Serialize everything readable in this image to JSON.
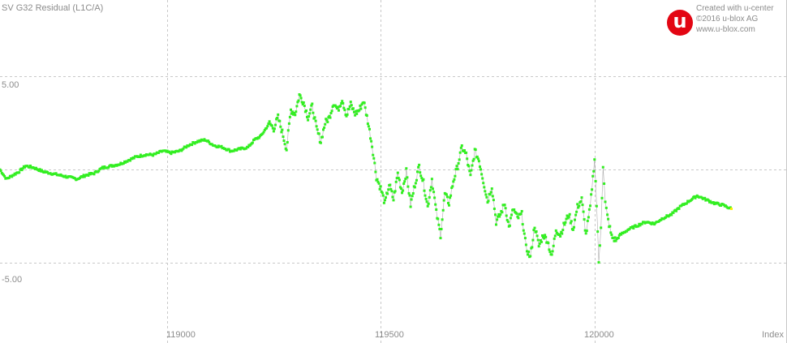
{
  "chart_data": {
    "type": "scatter",
    "title": "SV G32 Residual (L1C/A)",
    "xlabel": "Index",
    "ylabel": "",
    "xlim": [
      118610,
      120450
    ],
    "ylim": [
      -9.3,
      9.1
    ],
    "x_ticks": [
      119000,
      119500,
      120000
    ],
    "y_ticks": [
      5.0,
      0.0,
      -5.0
    ],
    "y_tick_labels": [
      {
        "value": 5.0,
        "label": "5.00"
      },
      {
        "value": -5.0,
        "label": "-5.00"
      }
    ],
    "x_tick_labels": [
      {
        "value": 119000,
        "label": "119000"
      },
      {
        "value": 119500,
        "label": "119500"
      },
      {
        "value": 120000,
        "label": "120000"
      }
    ],
    "grid": true,
    "legend": "none",
    "colors": {
      "points": "#33ee22",
      "line": "#888888",
      "grid": "#c8c8c8",
      "last_point": "#ffee00"
    },
    "series": [
      {
        "x": [
          118610,
          118625,
          118640,
          118655,
          118670,
          118690,
          118710,
          118730,
          118750,
          118770,
          118790,
          118810,
          118830,
          118850,
          118870,
          118890,
          118910,
          118930,
          118950,
          118970,
          118990,
          119010,
          119030,
          119050,
          119070,
          119090,
          119110,
          119130,
          119150,
          119170,
          119190,
          119205,
          119220,
          119240,
          119250,
          119260,
          119270,
          119280,
          119290,
          119300,
          119310,
          119320,
          119330,
          119340,
          119350,
          119360,
          119370,
          119380,
          119390,
          119400,
          119410,
          119420,
          119430,
          119440,
          119450,
          119460,
          119470,
          119480,
          119490,
          119500,
          119510,
          119520,
          119530,
          119540,
          119550,
          119560,
          119570,
          119580,
          119590,
          119600,
          119610,
          119620,
          119630,
          119640,
          119650,
          119660,
          119670,
          119680,
          119690,
          119700,
          119710,
          119720,
          119730,
          119740,
          119750,
          119760,
          119770,
          119780,
          119790,
          119800,
          119810,
          119820,
          119830,
          119840,
          119850,
          119860,
          119870,
          119880,
          119890,
          119900,
          119910,
          119920,
          119930,
          119940,
          119950,
          119960,
          119970,
          119980,
          119990,
          120000,
          120005,
          120010,
          120015,
          120020,
          120025,
          120030,
          120040,
          120050,
          120060,
          120080,
          120100,
          120120,
          120140,
          120160,
          120180,
          120200,
          120220,
          120240,
          120260,
          120280,
          120300,
          120320
        ],
        "y": [
          0.0,
          -0.5,
          -0.3,
          -0.1,
          0.2,
          0.1,
          -0.1,
          -0.2,
          -0.3,
          -0.4,
          -0.5,
          -0.3,
          -0.2,
          0.1,
          0.2,
          0.3,
          0.5,
          0.7,
          0.8,
          0.8,
          1.0,
          0.9,
          1.0,
          1.3,
          1.5,
          1.6,
          1.3,
          1.2,
          1.0,
          1.1,
          1.2,
          1.6,
          1.8,
          2.5,
          2.2,
          2.8,
          2.0,
          1.1,
          3.2,
          3.0,
          4.0,
          3.6,
          2.8,
          3.4,
          2.2,
          1.5,
          2.5,
          2.8,
          3.6,
          3.2,
          3.8,
          2.9,
          3.5,
          3.0,
          3.2,
          3.7,
          2.6,
          1.3,
          -0.4,
          -1.0,
          -1.8,
          -0.8,
          -1.6,
          -0.2,
          -1.2,
          -0.1,
          -1.9,
          -0.8,
          0.2,
          -0.7,
          -2.0,
          -0.5,
          -2.3,
          -3.5,
          -1.3,
          -1.8,
          -0.6,
          0.2,
          1.2,
          0.8,
          -0.4,
          1.0,
          0.5,
          -0.6,
          -1.7,
          -0.9,
          -2.8,
          -2.4,
          -1.8,
          -3.1,
          -2.1,
          -2.6,
          -2.4,
          -4.2,
          -4.7,
          -3.0,
          -4.1,
          -3.5,
          -3.8,
          -4.7,
          -3.2,
          -3.5,
          -2.9,
          -2.4,
          -3.2,
          -2.0,
          -1.6,
          -3.5,
          -2.0,
          0.6,
          -1.9,
          -5.0,
          -3.0,
          0.2,
          -1.8,
          -2.5,
          -3.6,
          -3.8,
          -3.5,
          -3.2,
          -3.0,
          -2.8,
          -2.9,
          -2.6,
          -2.4,
          -2.0,
          -1.7,
          -1.4,
          -1.6,
          -1.8,
          -1.9,
          -2.1
        ]
      }
    ]
  }
}
